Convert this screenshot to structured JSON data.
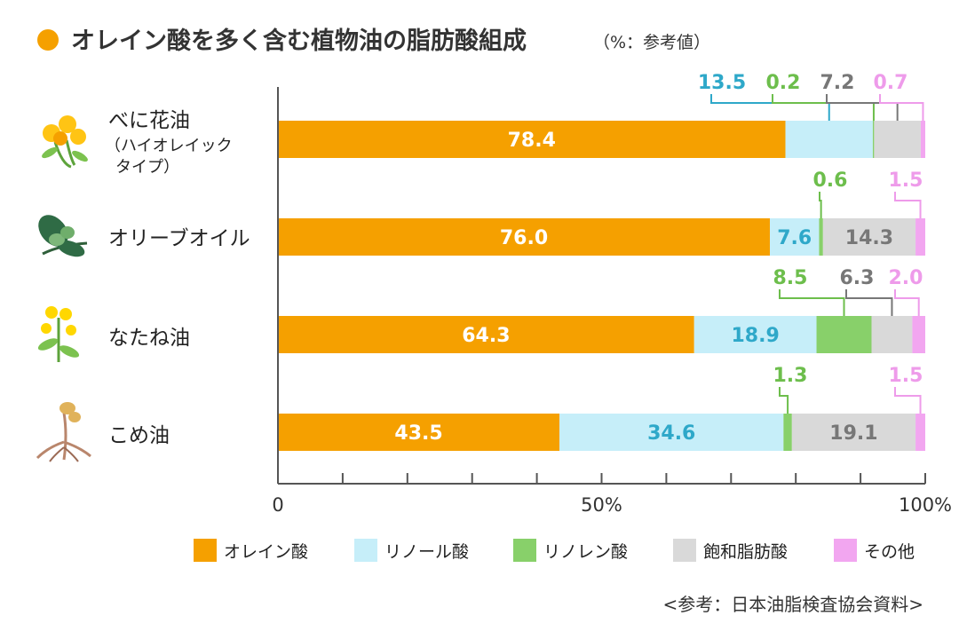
{
  "header": {
    "title": "オレイン酸を多く含む植物油の脂肪酸組成",
    "subtitle": "（%：参考値）",
    "bullet_color": "#F5A000"
  },
  "source": "<参考：日本油脂検査協会資料>",
  "chart_data": {
    "type": "bar",
    "orientation": "horizontal",
    "stacked": true,
    "categories": [
      "べに花油",
      "オリーブオイル",
      "なたね油",
      "こめ油"
    ],
    "category_sublabels": [
      [
        "（ハイオレイック",
        "タイプ）"
      ],
      [],
      [],
      []
    ],
    "category_icons": [
      "safflower-icon",
      "olive-icon",
      "rapeseed-icon",
      "rice-icon"
    ],
    "series": [
      {
        "name": "オレイン酸",
        "values": [
          78.4,
          76.0,
          64.3,
          43.5
        ],
        "color": "#F5A000",
        "label_color": "#ffffff"
      },
      {
        "name": "リノール酸",
        "values": [
          13.5,
          7.6,
          18.9,
          34.6
        ],
        "color": "#C6EEF9",
        "label_color": "#2EA8C9"
      },
      {
        "name": "リノレン酸",
        "values": [
          0.2,
          0.6,
          8.5,
          1.3
        ],
        "color": "#88D06A",
        "label_color": "#6DBE4C"
      },
      {
        "name": "飽和脂肪酸",
        "values": [
          7.2,
          14.3,
          6.3,
          19.1
        ],
        "color": "#D9D9D9",
        "label_color": "#777777"
      },
      {
        "name": "その他",
        "values": [
          0.7,
          1.5,
          2.0,
          1.5
        ],
        "color": "#F2A6F0",
        "label_color": "#EE9BEA"
      }
    ],
    "xlim": [
      0,
      100
    ],
    "xticks": [
      0,
      10,
      20,
      30,
      40,
      50,
      60,
      70,
      80,
      90,
      100
    ],
    "xtick_labels": {
      "0": "0",
      "50": "50%",
      "100": "100%"
    },
    "legend_position": "bottom"
  }
}
